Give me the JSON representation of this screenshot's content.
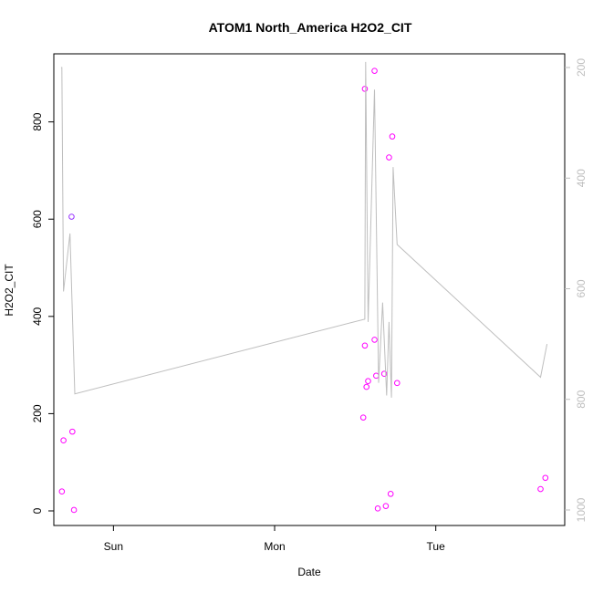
{
  "chart_data": {
    "type": "scatter",
    "title": "ATOM1 North_America H2O2_CIT",
    "xlabel": "Date",
    "ylabel": "H2O2_CIT",
    "x_unit": "days",
    "xlim": [
      -0.37,
      2.8
    ],
    "ylim": [
      -30,
      940
    ],
    "x_ticks": [
      {
        "value": 0,
        "label": "Sun"
      },
      {
        "value": 1,
        "label": "Mon"
      },
      {
        "value": 2,
        "label": "Tue"
      }
    ],
    "y_ticks": [
      0,
      200,
      400,
      600,
      800
    ],
    "y2_range": [
      1000,
      200
    ],
    "y2_ticks": [
      200,
      400,
      600,
      800,
      1000
    ],
    "series": [
      {
        "kind": "points",
        "color": "#ff00ff",
        "points": [
          {
            "x": -0.32,
            "y": 40
          },
          {
            "x": -0.31,
            "y": 145
          },
          {
            "x": -0.26,
            "y": 605
          },
          {
            "x": -0.255,
            "y": 163
          },
          {
            "x": -0.245,
            "y": 2
          },
          {
            "x": 1.55,
            "y": 192
          },
          {
            "x": 1.56,
            "y": 340
          },
          {
            "x": 1.56,
            "y": 868
          },
          {
            "x": 1.57,
            "y": 255
          },
          {
            "x": 1.58,
            "y": 267
          },
          {
            "x": 1.62,
            "y": 352
          },
          {
            "x": 1.62,
            "y": 905
          },
          {
            "x": 1.63,
            "y": 278
          },
          {
            "x": 1.64,
            "y": 5
          },
          {
            "x": 1.68,
            "y": 282
          },
          {
            "x": 1.69,
            "y": 10
          },
          {
            "x": 1.71,
            "y": 727
          },
          {
            "x": 1.72,
            "y": 35
          },
          {
            "x": 1.73,
            "y": 770
          },
          {
            "x": 1.76,
            "y": 263
          },
          {
            "x": 2.65,
            "y": 45
          },
          {
            "x": 2.68,
            "y": 68
          }
        ]
      },
      {
        "kind": "line",
        "axis": "right",
        "color": "#bebebe",
        "points": [
          {
            "x": -0.325,
            "y": 200
          },
          {
            "x": -0.32,
            "y": 200
          },
          {
            "x": -0.31,
            "y": 605
          },
          {
            "x": -0.27,
            "y": 500
          },
          {
            "x": -0.24,
            "y": 790
          },
          {
            "x": 1.56,
            "y": 655
          },
          {
            "x": 1.565,
            "y": 190
          },
          {
            "x": 1.58,
            "y": 660
          },
          {
            "x": 1.62,
            "y": 240
          },
          {
            "x": 1.645,
            "y": 770
          },
          {
            "x": 1.67,
            "y": 625
          },
          {
            "x": 1.695,
            "y": 793
          },
          {
            "x": 1.71,
            "y": 660
          },
          {
            "x": 1.725,
            "y": 797
          },
          {
            "x": 1.735,
            "y": 380
          },
          {
            "x": 1.76,
            "y": 520
          },
          {
            "x": 2.65,
            "y": 760
          },
          {
            "x": 2.69,
            "y": 700
          }
        ]
      }
    ]
  }
}
